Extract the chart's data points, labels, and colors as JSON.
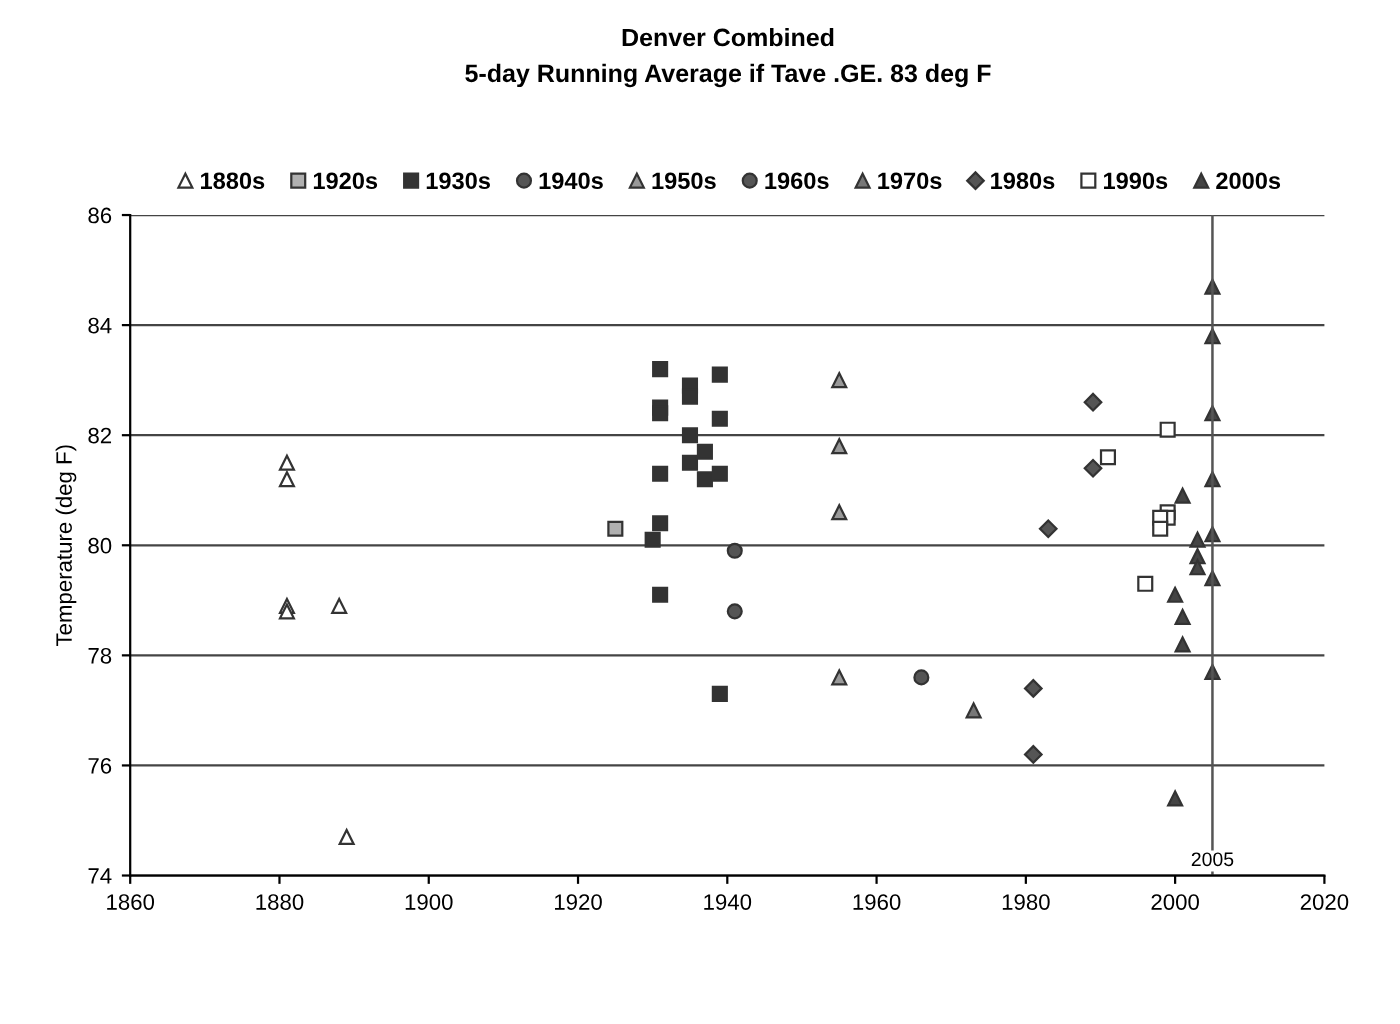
{
  "chart_data": {
    "type": "scatter",
    "title": "Denver Combined",
    "subtitle": "5-day Running Average if Tave .GE. 83 deg F",
    "ylabel": "Temperature (deg F)",
    "xlim": [
      1860,
      2020
    ],
    "xticks": [
      1860,
      1880,
      1900,
      1920,
      1940,
      1960,
      1980,
      2000,
      2020
    ],
    "ylim": [
      74,
      86
    ],
    "yticks": [
      74,
      76,
      78,
      80,
      82,
      84,
      86
    ],
    "grid": "y",
    "legend": "top",
    "ref_lines": [
      {
        "axis": "x",
        "value": 2005,
        "label": "2005",
        "color": "#555555"
      }
    ],
    "series": [
      {
        "name": "1880s",
        "color": "#ffffff",
        "marker": "triangle",
        "x": [
          1881,
          1881,
          1881,
          1881,
          1888,
          1889
        ],
        "values": [
          81.5,
          81.2,
          78.9,
          78.8,
          78.9,
          74.7
        ]
      },
      {
        "name": "1920s",
        "color": "#b0b0b0",
        "marker": "square",
        "x": [
          1925
        ],
        "values": [
          80.3
        ]
      },
      {
        "name": "1930s",
        "color": "#333333",
        "marker": "square",
        "x": [
          1931,
          1931,
          1931,
          1931,
          1931,
          1931,
          1930,
          1935,
          1935,
          1935,
          1935,
          1937,
          1937,
          1939,
          1939,
          1939,
          1939
        ],
        "values": [
          83.2,
          82.5,
          82.4,
          81.3,
          80.4,
          79.1,
          80.1,
          82.9,
          82.7,
          82.0,
          81.5,
          81.7,
          81.2,
          83.1,
          82.3,
          81.3,
          77.3
        ]
      },
      {
        "name": "1940s",
        "color": "#555555",
        "marker": "circle",
        "x": [
          1941,
          1941
        ],
        "values": [
          79.9,
          78.8
        ]
      },
      {
        "name": "1950s",
        "color": "#999999",
        "marker": "triangle",
        "x": [
          1955,
          1955,
          1955,
          1955
        ],
        "values": [
          83.0,
          81.8,
          80.6,
          77.6
        ]
      },
      {
        "name": "1960s",
        "color": "#555555",
        "marker": "circle",
        "x": [
          1966
        ],
        "values": [
          77.6
        ]
      },
      {
        "name": "1970s",
        "color": "#777777",
        "marker": "triangle",
        "x": [
          1973
        ],
        "values": [
          77.0
        ]
      },
      {
        "name": "1980s",
        "color": "#555555",
        "marker": "diamond",
        "x": [
          1981,
          1981,
          1983,
          1989,
          1989
        ],
        "values": [
          77.4,
          76.2,
          80.3,
          82.6,
          81.4
        ]
      },
      {
        "name": "1990s",
        "color": "#ffffff",
        "marker": "square",
        "x": [
          1999,
          1991,
          1999,
          1999,
          1998,
          1998,
          1996
        ],
        "values": [
          82.1,
          81.6,
          80.6,
          80.5,
          80.5,
          80.3,
          79.3
        ]
      },
      {
        "name": "2000s",
        "color": "#444444",
        "marker": "triangle",
        "x": [
          2005,
          2005,
          2005,
          2005,
          2005,
          2005,
          2005,
          2001,
          2003,
          2003,
          2003,
          2000,
          2001,
          2001,
          2000
        ],
        "values": [
          84.7,
          83.8,
          82.4,
          81.2,
          80.2,
          79.4,
          77.7,
          80.9,
          80.1,
          79.8,
          79.6,
          79.1,
          78.7,
          78.2,
          75.4
        ]
      }
    ]
  }
}
